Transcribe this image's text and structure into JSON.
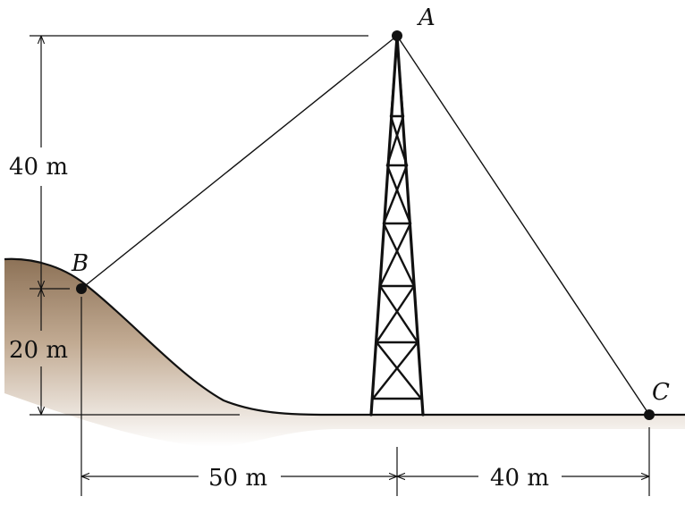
{
  "diagram": {
    "points": {
      "a": "A",
      "b": "B",
      "c": "C"
    },
    "dimensions": {
      "height_a_above_b": "40 m",
      "height_b_above_ground": "20 m",
      "horizontal_b_to_tower": "50 m",
      "horizontal_tower_to_c": "40 m"
    },
    "colors": {
      "ground_fill": "#b79f86",
      "line": "#111111",
      "background": "#ffffff"
    }
  }
}
